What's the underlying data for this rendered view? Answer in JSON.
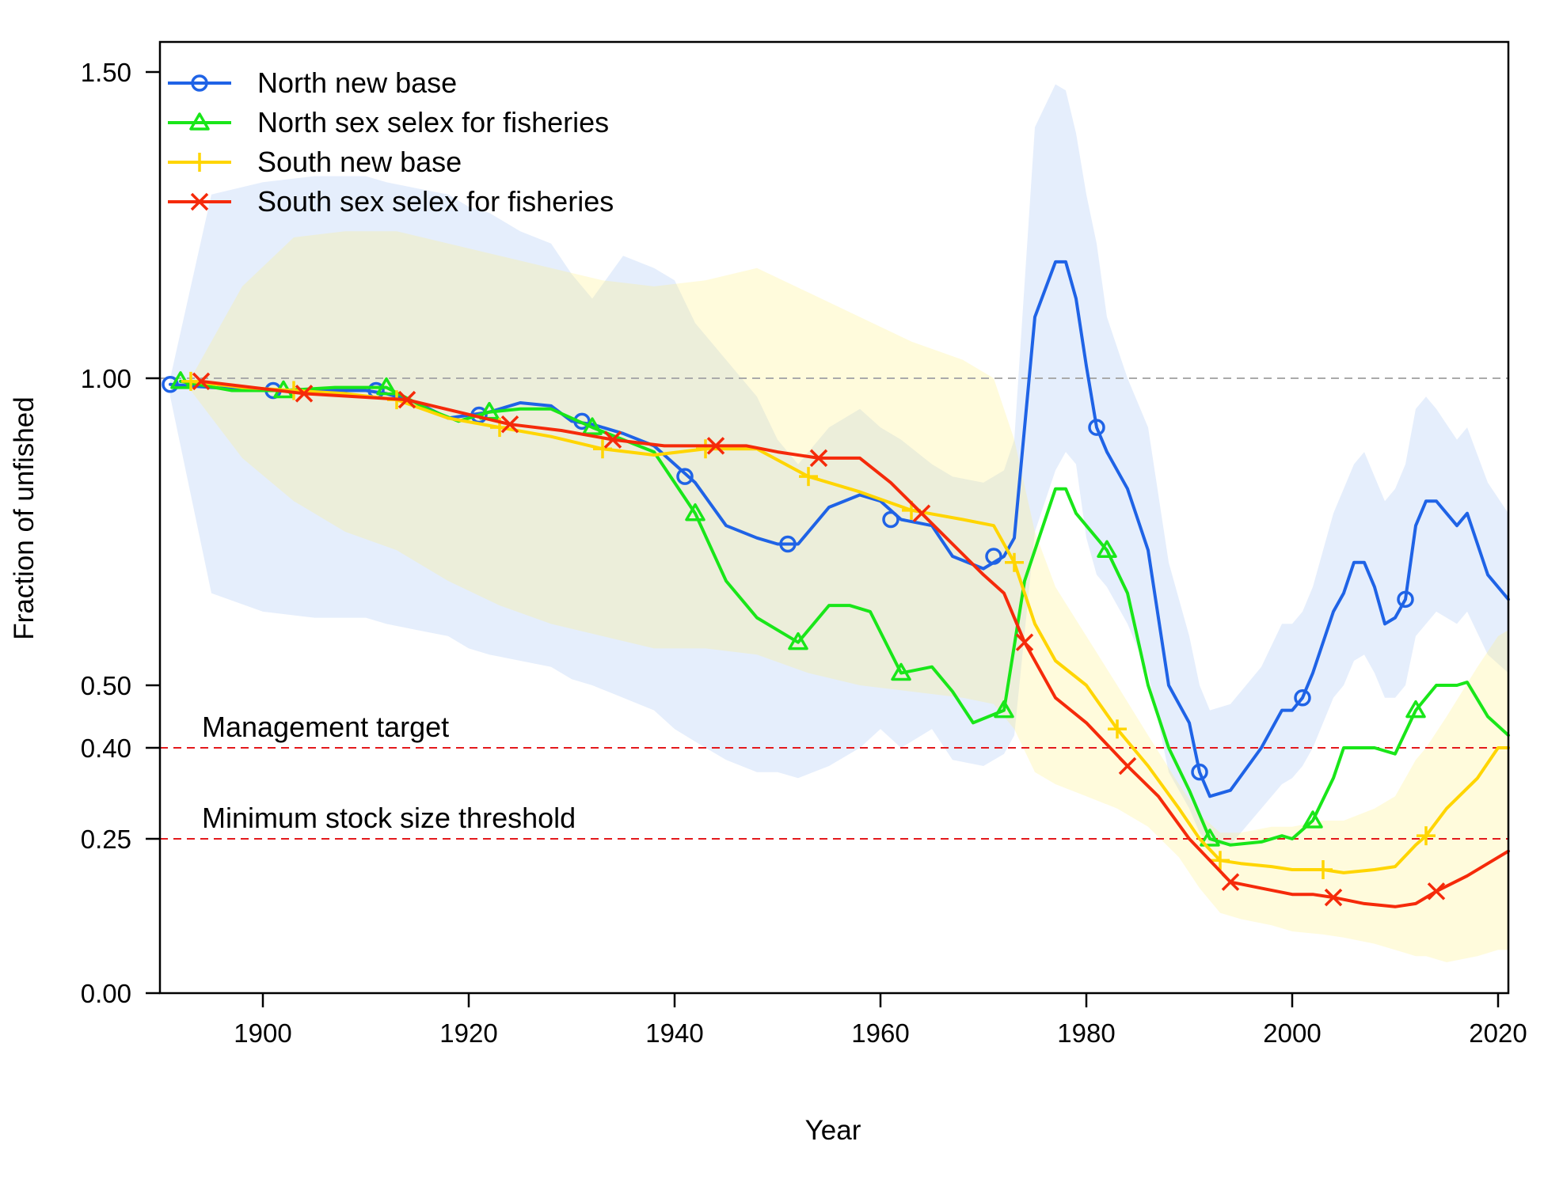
{
  "chart_data": {
    "type": "line",
    "title": "",
    "xlabel": "Year",
    "ylabel": "Fraction of unfished",
    "xlim": [
      1890,
      2021
    ],
    "ylim": [
      0,
      1.5
    ],
    "x_ticks": [
      1900,
      1920,
      1940,
      1960,
      1980,
      2000,
      2020
    ],
    "y_ticks": [
      0,
      0.25,
      0.4,
      0.5,
      1.0,
      1.5
    ],
    "y_tick_labels": [
      "0.00",
      "0.25",
      "0.40",
      "0.50",
      "1.00",
      "1.50"
    ],
    "grid": false,
    "legend_position": "top-left",
    "reference_lines": [
      {
        "value": 1.0,
        "label": "",
        "color": "#aaaaaa"
      },
      {
        "value": 0.4,
        "label": "Management target",
        "color": "#e3191c"
      },
      {
        "value": 0.25,
        "label": "Minimum stock size threshold",
        "color": "#e3191c"
      }
    ],
    "series": [
      {
        "name": "North new base",
        "color": "#1f63e6",
        "marker": "circle",
        "x": [
          1891,
          1895,
          1900,
          1905,
          1910,
          1912,
          1915,
          1918,
          1920,
          1922,
          1925,
          1928,
          1930,
          1932,
          1935,
          1938,
          1940,
          1942,
          1945,
          1948,
          1950,
          1952,
          1955,
          1958,
          1960,
          1962,
          1965,
          1967,
          1970,
          1972,
          1973,
          1975,
          1977,
          1978,
          1979,
          1980,
          1981,
          1982,
          1984,
          1986,
          1988,
          1990,
          1991,
          1992,
          1994,
          1997,
          1999,
          2000,
          2001,
          2002,
          2004,
          2005,
          2006,
          2007,
          2008,
          2009,
          2010,
          2011,
          2012,
          2013,
          2014,
          2016,
          2017,
          2019,
          2021
        ],
        "y": [
          0.99,
          0.985,
          0.98,
          0.98,
          0.98,
          0.975,
          0.96,
          0.935,
          0.94,
          0.945,
          0.96,
          0.955,
          0.93,
          0.925,
          0.91,
          0.89,
          0.86,
          0.83,
          0.76,
          0.74,
          0.73,
          0.73,
          0.79,
          0.81,
          0.8,
          0.77,
          0.76,
          0.71,
          0.69,
          0.71,
          0.74,
          1.1,
          1.19,
          1.19,
          1.13,
          1.02,
          0.92,
          0.88,
          0.82,
          0.72,
          0.5,
          0.44,
          0.36,
          0.32,
          0.33,
          0.4,
          0.46,
          0.46,
          0.48,
          0.52,
          0.62,
          0.65,
          0.7,
          0.7,
          0.66,
          0.6,
          0.61,
          0.64,
          0.76,
          0.8,
          0.8,
          0.76,
          0.78,
          0.68,
          0.64
        ],
        "markers_x": [
          1891,
          1901,
          1911,
          1921,
          1931,
          1941,
          1951,
          1961,
          1971,
          1981,
          1991,
          2001,
          2011
        ],
        "markers_y": [
          0.99,
          0.98,
          0.98,
          0.94,
          0.93,
          0.84,
          0.73,
          0.77,
          0.71,
          0.92,
          0.36,
          0.48,
          0.64
        ],
        "ci_upper": [
          1.0,
          1.3,
          1.32,
          1.33,
          1.33,
          1.32,
          1.31,
          1.3,
          1.28,
          1.27,
          1.24,
          1.22,
          1.17,
          1.13,
          1.2,
          1.18,
          1.16,
          1.09,
          1.03,
          0.97,
          0.9,
          0.86,
          0.92,
          0.95,
          0.92,
          0.9,
          0.86,
          0.84,
          0.83,
          0.85,
          0.9,
          1.41,
          1.48,
          1.47,
          1.4,
          1.3,
          1.22,
          1.1,
          1.0,
          0.92,
          0.7,
          0.58,
          0.5,
          0.46,
          0.47,
          0.53,
          0.6,
          0.6,
          0.62,
          0.66,
          0.78,
          0.82,
          0.86,
          0.88,
          0.84,
          0.8,
          0.82,
          0.86,
          0.95,
          0.97,
          0.95,
          0.9,
          0.92,
          0.83,
          0.78
        ],
        "ci_lower": [
          0.97,
          0.65,
          0.62,
          0.61,
          0.61,
          0.6,
          0.59,
          0.58,
          0.56,
          0.55,
          0.54,
          0.53,
          0.51,
          0.5,
          0.48,
          0.46,
          0.43,
          0.41,
          0.38,
          0.36,
          0.36,
          0.35,
          0.37,
          0.4,
          0.43,
          0.4,
          0.43,
          0.38,
          0.37,
          0.39,
          0.42,
          0.75,
          0.85,
          0.88,
          0.86,
          0.74,
          0.68,
          0.66,
          0.6,
          0.52,
          0.36,
          0.3,
          0.26,
          0.24,
          0.24,
          0.3,
          0.34,
          0.35,
          0.37,
          0.4,
          0.48,
          0.5,
          0.54,
          0.55,
          0.52,
          0.48,
          0.48,
          0.5,
          0.58,
          0.6,
          0.62,
          0.6,
          0.62,
          0.55,
          0.52
        ]
      },
      {
        "name": "North sex selex for fisheries",
        "color": "#19e619",
        "marker": "triangle",
        "x": [
          1892,
          1897,
          1902,
          1907,
          1912,
          1916,
          1919,
          1922,
          1925,
          1928,
          1932,
          1935,
          1938,
          1940,
          1942,
          1945,
          1948,
          1950,
          1952,
          1955,
          1957,
          1959,
          1962,
          1965,
          1967,
          1969,
          1972,
          1974,
          1977,
          1978,
          1979,
          1981,
          1982,
          1984,
          1986,
          1988,
          1990,
          1991,
          1992,
          1994,
          1997,
          1999,
          2000,
          2002,
          2004,
          2005,
          2008,
          2010,
          2012,
          2014,
          2016,
          2017,
          2019,
          2021
        ],
        "y": [
          0.995,
          0.98,
          0.98,
          0.985,
          0.985,
          0.95,
          0.93,
          0.945,
          0.95,
          0.95,
          0.92,
          0.9,
          0.88,
          0.83,
          0.78,
          0.67,
          0.61,
          0.59,
          0.57,
          0.63,
          0.63,
          0.62,
          0.52,
          0.53,
          0.49,
          0.44,
          0.46,
          0.67,
          0.82,
          0.82,
          0.78,
          0.74,
          0.72,
          0.65,
          0.5,
          0.4,
          0.33,
          0.29,
          0.25,
          0.24,
          0.245,
          0.255,
          0.25,
          0.28,
          0.35,
          0.4,
          0.4,
          0.39,
          0.46,
          0.5,
          0.5,
          0.505,
          0.45,
          0.42
        ],
        "markers_x": [
          1892,
          1902,
          1912,
          1922,
          1932,
          1942,
          1952,
          1962,
          1972,
          1982,
          1992,
          2002,
          2012
        ],
        "markers_y": [
          0.995,
          0.98,
          0.985,
          0.945,
          0.92,
          0.78,
          0.57,
          0.52,
          0.46,
          0.72,
          0.25,
          0.28,
          0.46
        ]
      },
      {
        "name": "South new base",
        "color": "#ffd500",
        "marker": "plus",
        "x": [
          1893,
          1898,
          1903,
          1908,
          1913,
          1918,
          1923,
          1928,
          1933,
          1938,
          1943,
          1948,
          1953,
          1958,
          1963,
          1968,
          1971,
          1973,
          1975,
          1977,
          1980,
          1983,
          1986,
          1989,
          1991,
          1993,
          1995,
          1998,
          2000,
          2003,
          2005,
          2008,
          2010,
          2012,
          2013,
          2015,
          2018,
          2020,
          2021
        ],
        "y": [
          0.995,
          0.985,
          0.98,
          0.975,
          0.965,
          0.935,
          0.92,
          0.905,
          0.885,
          0.875,
          0.885,
          0.885,
          0.84,
          0.815,
          0.785,
          0.77,
          0.76,
          0.7,
          0.6,
          0.54,
          0.5,
          0.43,
          0.37,
          0.3,
          0.25,
          0.215,
          0.21,
          0.205,
          0.2,
          0.2,
          0.195,
          0.2,
          0.205,
          0.24,
          0.255,
          0.3,
          0.35,
          0.4,
          0.4
        ],
        "markers_x": [
          1893,
          1903,
          1913,
          1923,
          1933,
          1943,
          1953,
          1963,
          1973,
          1983,
          1993,
          2003,
          2013
        ],
        "markers_y": [
          0.995,
          0.98,
          0.965,
          0.92,
          0.885,
          0.885,
          0.84,
          0.785,
          0.7,
          0.43,
          0.215,
          0.2,
          0.255
        ],
        "ci_upper": [
          1.0,
          1.15,
          1.23,
          1.24,
          1.24,
          1.22,
          1.2,
          1.18,
          1.16,
          1.15,
          1.16,
          1.18,
          1.14,
          1.1,
          1.06,
          1.03,
          1.0,
          0.9,
          0.75,
          0.66,
          0.58,
          0.5,
          0.42,
          0.34,
          0.29,
          0.26,
          0.26,
          0.27,
          0.27,
          0.28,
          0.28,
          0.3,
          0.32,
          0.38,
          0.4,
          0.45,
          0.53,
          0.58,
          0.59
        ],
        "ci_lower": [
          0.98,
          0.87,
          0.8,
          0.75,
          0.72,
          0.67,
          0.63,
          0.6,
          0.58,
          0.56,
          0.56,
          0.55,
          0.52,
          0.5,
          0.49,
          0.48,
          0.47,
          0.43,
          0.36,
          0.34,
          0.32,
          0.3,
          0.27,
          0.22,
          0.17,
          0.13,
          0.12,
          0.11,
          0.1,
          0.095,
          0.09,
          0.08,
          0.07,
          0.06,
          0.06,
          0.05,
          0.06,
          0.07,
          0.07
        ]
      },
      {
        "name": "South sex selex for fisheries",
        "color": "#f52a0a",
        "marker": "x",
        "x": [
          1894,
          1899,
          1904,
          1909,
          1914,
          1919,
          1924,
          1929,
          1934,
          1939,
          1944,
          1947,
          1950,
          1954,
          1958,
          1961,
          1964,
          1967,
          1970,
          1972,
          1974,
          1977,
          1980,
          1984,
          1987,
          1990,
          1992,
          1994,
          1997,
          2000,
          2002,
          2004,
          2007,
          2010,
          2012,
          2014,
          2017,
          2019,
          2021
        ],
        "y": [
          0.995,
          0.985,
          0.975,
          0.97,
          0.965,
          0.945,
          0.925,
          0.915,
          0.9,
          0.89,
          0.89,
          0.89,
          0.88,
          0.87,
          0.87,
          0.83,
          0.78,
          0.73,
          0.68,
          0.65,
          0.57,
          0.48,
          0.44,
          0.37,
          0.32,
          0.25,
          0.215,
          0.18,
          0.17,
          0.16,
          0.16,
          0.155,
          0.145,
          0.14,
          0.145,
          0.165,
          0.19,
          0.21,
          0.23
        ],
        "markers_x": [
          1894,
          1904,
          1914,
          1924,
          1934,
          1944,
          1954,
          1964,
          1974,
          1984,
          1994,
          2004,
          2014
        ],
        "markers_y": [
          0.995,
          0.975,
          0.965,
          0.925,
          0.9,
          0.89,
          0.87,
          0.78,
          0.57,
          0.37,
          0.18,
          0.155,
          0.165
        ]
      }
    ]
  }
}
